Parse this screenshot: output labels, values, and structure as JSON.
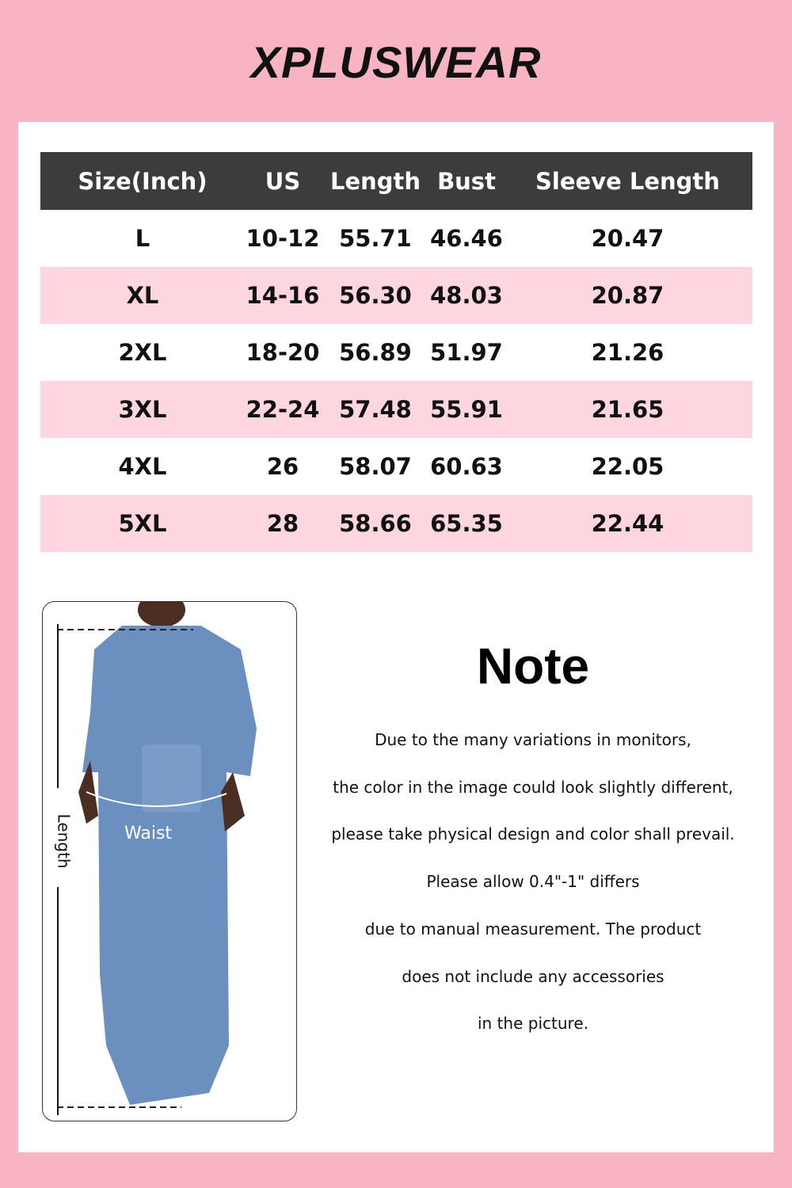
{
  "brand": {
    "logo": "XPLUSWEAR"
  },
  "colors": {
    "background": "#f8b4c0",
    "header": "#3c3c3c",
    "row_alt": "#fdd6df",
    "denim": "#6b8fbf"
  },
  "size_table": {
    "headers": [
      "Size(Inch)",
      "US",
      "Length",
      "Bust",
      "Sleeve Length"
    ],
    "rows": [
      [
        "L",
        "10-12",
        "55.71",
        "46.46",
        "20.47"
      ],
      [
        "XL",
        "14-16",
        "56.30",
        "48.03",
        "20.87"
      ],
      [
        "2XL",
        "18-20",
        "56.89",
        "51.97",
        "21.26"
      ],
      [
        "3XL",
        "22-24",
        "57.48",
        "55.91",
        "21.65"
      ],
      [
        "4XL",
        "26",
        "58.07",
        "60.63",
        "22.05"
      ],
      [
        "5XL",
        "28",
        "58.66",
        "65.35",
        "22.44"
      ]
    ]
  },
  "diagram": {
    "length_label": "Length",
    "waist_label": "Waist"
  },
  "note": {
    "title": "Note",
    "lines": [
      "Due to the many variations in monitors,",
      "the color in the image could look slightly different,",
      "please take physical design and color shall prevail.",
      "Please allow 0.4\"-1\" differs",
      "due to manual measurement. The product",
      "does not include any accessories",
      "in the picture."
    ]
  }
}
